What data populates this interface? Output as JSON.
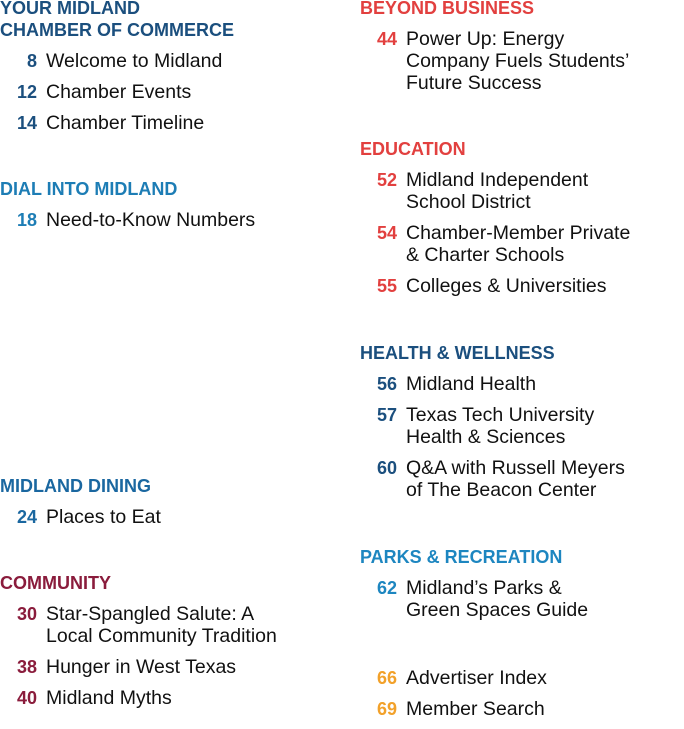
{
  "columns": [
    {
      "sections": [
        {
          "header": [
            "YOUR MIDLAND",
            "CHAMBER OF COMMERCE"
          ],
          "color": "#1b4f7e",
          "items": [
            {
              "page": "8",
              "lines": [
                "Welcome to Midland"
              ]
            },
            {
              "page": "12",
              "lines": [
                "Chamber Events"
              ]
            },
            {
              "page": "14",
              "lines": [
                "Chamber Timeline"
              ]
            }
          ]
        },
        {
          "header": [
            "DIAL INTO MIDLAND"
          ],
          "color": "#1d7db5",
          "items": [
            {
              "page": "18",
              "lines": [
                "Need-to-Know Numbers"
              ]
            }
          ]
        },
        {
          "header": [
            "MIDLAND DINING"
          ],
          "color": "#1a67a0",
          "items": [
            {
              "page": "24",
              "lines": [
                "Places to Eat"
              ]
            }
          ]
        },
        {
          "header": [
            "COMMUNITY"
          ],
          "color": "#8a1c3c",
          "items": [
            {
              "page": "30",
              "lines": [
                "Star-Spangled Salute: A",
                "Local Community Tradition"
              ]
            },
            {
              "page": "38",
              "lines": [
                "Hunger in West Texas"
              ]
            },
            {
              "page": "40",
              "lines": [
                "Midland Myths"
              ]
            }
          ]
        }
      ]
    },
    {
      "sections": [
        {
          "header": [
            "BEYOND BUSINESS"
          ],
          "color": "#e2403f",
          "items": [
            {
              "page": "44",
              "lines": [
                "Power Up: Energy",
                "Company Fuels Students’",
                "Future Success"
              ]
            }
          ]
        },
        {
          "header": [
            "EDUCATION"
          ],
          "color": "#e2403f",
          "items": [
            {
              "page": "52",
              "lines": [
                "Midland Independent",
                "School District"
              ]
            },
            {
              "page": "54",
              "lines": [
                "Chamber-Member Private",
                "& Charter Schools"
              ]
            },
            {
              "page": "55",
              "lines": [
                "Colleges & Universities"
              ]
            }
          ]
        },
        {
          "header": [
            "HEALTH & WELLNESS"
          ],
          "color": "#1b4f7e",
          "items": [
            {
              "page": "56",
              "lines": [
                "Midland Health"
              ]
            },
            {
              "page": "57",
              "lines": [
                "Texas Tech University",
                "Health & Sciences"
              ]
            },
            {
              "page": "60",
              "lines": [
                "Q&A with Russell Meyers",
                "of The Beacon Center"
              ]
            }
          ]
        },
        {
          "header": [
            "PARKS & RECREATION"
          ],
          "color": "#1d86c0",
          "items": [
            {
              "page": "62",
              "lines": [
                "Midland’s Parks &",
                "Green Spaces Guide"
              ]
            }
          ]
        },
        {
          "color": "#f2a12a",
          "items": [
            {
              "page": "66",
              "lines": [
                "Advertiser Index"
              ]
            },
            {
              "page": "69",
              "lines": [
                "Member Search"
              ]
            }
          ]
        }
      ]
    }
  ]
}
